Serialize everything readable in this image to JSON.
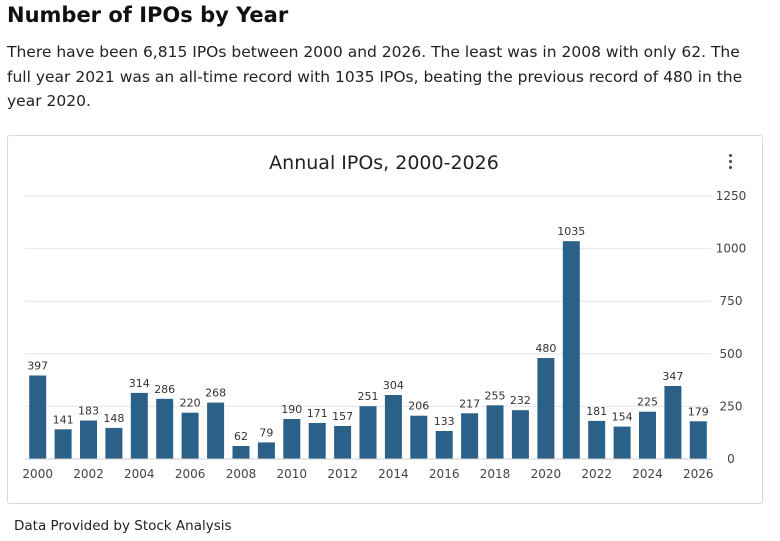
{
  "page": {
    "title": "Number of IPOs by Year",
    "description": "There have been 6,815 IPOs between 2000 and 2026. The least was in 2008 with only 62. The full year 2021 was an all-time record with 1035 IPOs, beating the previous record of 480 in the year 2020.",
    "footer": "Data Provided by Stock Analysis"
  },
  "colors": {
    "bar": "#2b6189",
    "grid": "#e6e6e6",
    "text": "#333333"
  },
  "chart_data": {
    "type": "bar",
    "title": "Annual IPOs, 2000-2026",
    "xlabel": "",
    "ylabel": "",
    "categories": [
      "2000",
      "2001",
      "2002",
      "2003",
      "2004",
      "2005",
      "2006",
      "2007",
      "2008",
      "2009",
      "2010",
      "2011",
      "2012",
      "2013",
      "2014",
      "2015",
      "2016",
      "2017",
      "2018",
      "2019",
      "2020",
      "2021",
      "2022",
      "2023",
      "2024",
      "2025",
      "2026"
    ],
    "values": [
      397,
      141,
      183,
      148,
      314,
      286,
      220,
      268,
      62,
      79,
      190,
      171,
      157,
      251,
      304,
      206,
      133,
      217,
      255,
      232,
      480,
      1035,
      181,
      154,
      225,
      347,
      179
    ],
    "x_tick_labels": [
      "2000",
      "2002",
      "2004",
      "2006",
      "2008",
      "2010",
      "2012",
      "2014",
      "2016",
      "2018",
      "2020",
      "2022",
      "2024",
      "2026"
    ],
    "ylim": [
      0,
      1250
    ],
    "y_ticks": [
      0,
      250,
      500,
      750,
      1000,
      1250
    ],
    "y_axis_side": "right",
    "grid": true,
    "data_labels": true
  }
}
